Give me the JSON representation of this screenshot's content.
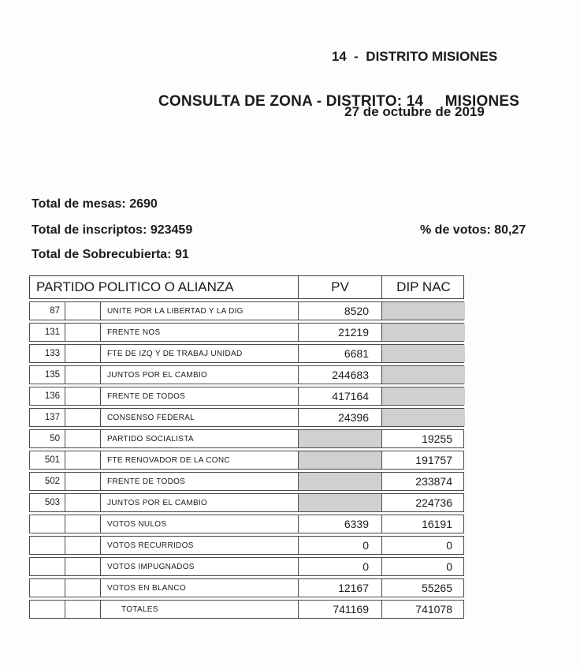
{
  "header": {
    "district_line": "14  -  DISTRITO MISIONES",
    "date_line": "27 de octubre de 2019",
    "title": "CONSULTA DE ZONA - DISTRITO: 14     MISIONES"
  },
  "totals": {
    "mesas": "Total de mesas: 2690",
    "inscriptos": "Total de inscriptos: 923459",
    "votos_pct": "% de votos: 80,27",
    "sobrecubierta": "Total de Sobrecubierta: 91"
  },
  "table": {
    "headers": {
      "party": "PARTIDO POLITICO O ALIANZA",
      "pv": "PV",
      "dip_nac": "DIP NAC"
    },
    "shaded_color": "#d0d0d0",
    "rows": [
      {
        "code": "87",
        "name": "UNITE POR LA LIBERTAD Y LA DIG",
        "pv": "8520",
        "dip_nac": null
      },
      {
        "code": "131",
        "name": "FRENTE NOS",
        "pv": "21219",
        "dip_nac": null
      },
      {
        "code": "133",
        "name": "FTE DE IZQ Y DE TRABAJ UNIDAD",
        "pv": "6681",
        "dip_nac": null
      },
      {
        "code": "135",
        "name": "JUNTOS POR EL CAMBIO",
        "pv": "244683",
        "dip_nac": null
      },
      {
        "code": "136",
        "name": "FRENTE DE TODOS",
        "pv": "417164",
        "dip_nac": null
      },
      {
        "code": "137",
        "name": "CONSENSO FEDERAL",
        "pv": "24396",
        "dip_nac": null
      },
      {
        "code": "50",
        "name": "PARTIDO SOCIALISTA",
        "pv": null,
        "dip_nac": "19255"
      },
      {
        "code": "501",
        "name": "FTE RENOVADOR DE LA CONC",
        "pv": null,
        "dip_nac": "191757"
      },
      {
        "code": "502",
        "name": "FRENTE DE TODOS",
        "pv": null,
        "dip_nac": "233874"
      },
      {
        "code": "503",
        "name": "JUNTOS POR EL CAMBIO",
        "pv": null,
        "dip_nac": "224736"
      },
      {
        "code": "",
        "name": "VOTOS NULOS",
        "pv": "6339",
        "dip_nac": "16191"
      },
      {
        "code": "",
        "name": "VOTOS RECURRIDOS",
        "pv": "0",
        "dip_nac": "0"
      },
      {
        "code": "",
        "name": "VOTOS IMPUGNADOS",
        "pv": "0",
        "dip_nac": "0"
      },
      {
        "code": "",
        "name": "VOTOS EN BLANCO",
        "pv": "12167",
        "dip_nac": "55265"
      },
      {
        "code": "",
        "name": "TOTALES",
        "pv": "741169",
        "dip_nac": "741078"
      }
    ]
  }
}
